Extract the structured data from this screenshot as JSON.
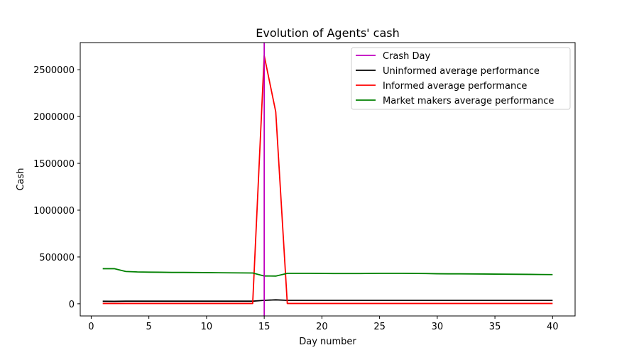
{
  "chart_data": {
    "type": "line",
    "title": "Evolution of Agents' cash",
    "xlabel": "Day number",
    "ylabel": "Cash",
    "xlim": [
      -0.95,
      41.95
    ],
    "ylim": [
      -130000,
      2790000
    ],
    "xticks": [
      0,
      5,
      10,
      15,
      20,
      25,
      30,
      35,
      40
    ],
    "xtick_labels": [
      "0",
      "5",
      "10",
      "15",
      "20",
      "25",
      "30",
      "35",
      "40"
    ],
    "yticks": [
      0,
      500000,
      1000000,
      1500000,
      2000000,
      2500000
    ],
    "ytick_labels": [
      "0",
      "500000",
      "1000000",
      "1500000",
      "2000000",
      "2500000"
    ],
    "grid": false,
    "legend_position": "upper right",
    "crash_day": {
      "name": "Crash Day",
      "x": 15,
      "color": "#bf00bf"
    },
    "x": [
      1,
      2,
      3,
      4,
      5,
      6,
      7,
      8,
      9,
      10,
      11,
      12,
      13,
      14,
      15,
      16,
      17,
      18,
      19,
      20,
      21,
      22,
      23,
      24,
      25,
      26,
      27,
      28,
      29,
      30,
      31,
      32,
      33,
      34,
      35,
      36,
      37,
      38,
      39,
      40
    ],
    "series": [
      {
        "name": "Uninformed average performance",
        "color": "#000000",
        "values": [
          27000,
          26000,
          28000,
          28000,
          28000,
          28000,
          28000,
          28000,
          28000,
          28000,
          28000,
          28000,
          28000,
          28000,
          37000,
          42000,
          37000,
          37000,
          37000,
          37000,
          37000,
          37000,
          37000,
          37000,
          37000,
          37000,
          37000,
          37000,
          37000,
          37000,
          37000,
          37000,
          37000,
          37000,
          37000,
          37000,
          37000,
          37000,
          37000,
          37000
        ]
      },
      {
        "name": "Informed average performance",
        "color": "#ff0000",
        "values": [
          3000,
          3000,
          3000,
          3000,
          3000,
          3000,
          3000,
          3000,
          3000,
          3000,
          3000,
          3000,
          3000,
          3000,
          2650000,
          2050000,
          3000,
          3000,
          3000,
          3000,
          3000,
          3000,
          3000,
          3000,
          3000,
          3000,
          3000,
          3000,
          3000,
          3000,
          3000,
          3000,
          3000,
          3000,
          3000,
          3000,
          3000,
          3000,
          3000,
          3000
        ]
      },
      {
        "name": "Market makers average performance",
        "color": "#008000",
        "values": [
          375000,
          375000,
          345000,
          340000,
          338000,
          337000,
          335000,
          335000,
          334000,
          333000,
          332000,
          331000,
          330000,
          329000,
          297000,
          296000,
          325000,
          325000,
          325000,
          324000,
          323000,
          323000,
          323000,
          324000,
          325000,
          325000,
          325000,
          324000,
          323000,
          321000,
          320000,
          320000,
          319000,
          318000,
          317000,
          316000,
          315000,
          314000,
          313000,
          312000
        ]
      }
    ]
  }
}
